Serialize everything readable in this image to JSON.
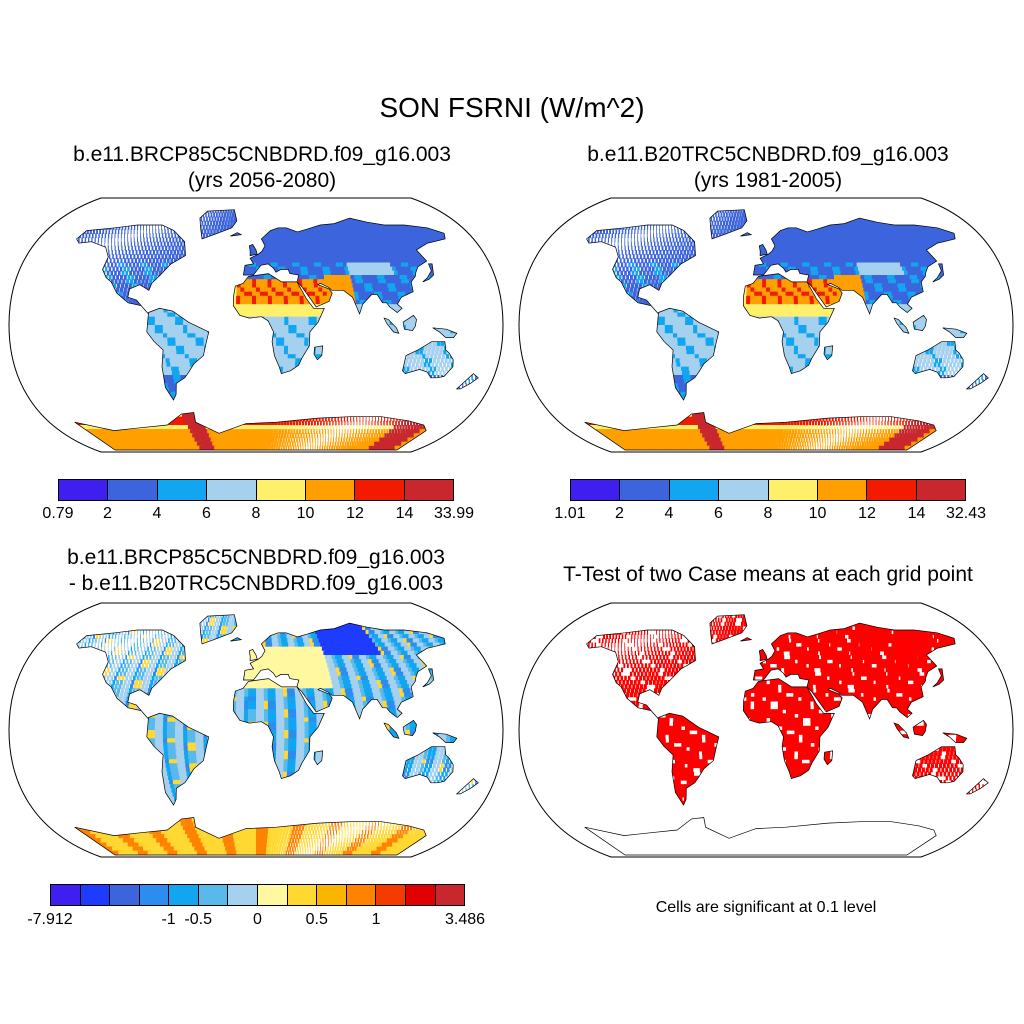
{
  "title": "SON FSRNI (W/m^2)",
  "panels": [
    {
      "title_line1": "b.e11.BRCP85C5CNBDRD.f09_g16.003",
      "title_line2": "(yrs 2056-2080)",
      "colorbar": {
        "colors": [
          "#3f1ef0",
          "#3c64dc",
          "#12a5f0",
          "#a5d1ef",
          "#fff06b",
          "#ff9f00",
          "#f21b00",
          "#c8282d"
        ],
        "labels": [
          "0.79",
          "2",
          "4",
          "6",
          "8",
          "10",
          "12",
          "14",
          "33.99"
        ]
      }
    },
    {
      "title_line1": "b.e11.B20TRC5CNBDRD.f09_g16.003",
      "title_line2": "(yrs 1981-2005)",
      "colorbar": {
        "colors": [
          "#3f1ef0",
          "#3c64dc",
          "#12a5f0",
          "#a5d1ef",
          "#fff06b",
          "#ff9f00",
          "#f21b00",
          "#c8282d"
        ],
        "labels": [
          "1.01",
          "2",
          "4",
          "6",
          "8",
          "10",
          "12",
          "14",
          "32.43"
        ]
      }
    },
    {
      "title_line1": "b.e11.BRCP85C5CNBDRD.f09_g16.003",
      "title_line2": "- b.e11.B20TRC5CNBDRD.f09_g16.003",
      "colorbar": {
        "colors": [
          "#3f1ef0",
          "#1e3cff",
          "#3c64dc",
          "#2d8cf0",
          "#12a5f0",
          "#5ab9eb",
          "#a5d1ef",
          "#fff8a0",
          "#ffd832",
          "#fbb400",
          "#ff8200",
          "#f53c00",
          "#e00000",
          "#c8282d"
        ],
        "labels": [
          {
            "text": "-7.912",
            "edge": 0
          },
          {
            "text": "-1",
            "edge": 4
          },
          {
            "text": "-0.5",
            "edge": 5
          },
          {
            "text": "0",
            "edge": 7
          },
          {
            "text": "0.5",
            "edge": 9
          },
          {
            "text": "1",
            "edge": 11
          },
          {
            "text": "3.486",
            "edge": 14
          }
        ]
      }
    },
    {
      "title_line1": "T-Test of two Case means at each grid point",
      "significance_color": "#ff0000",
      "note": "Cells are significant at 0.1 level"
    }
  ]
}
